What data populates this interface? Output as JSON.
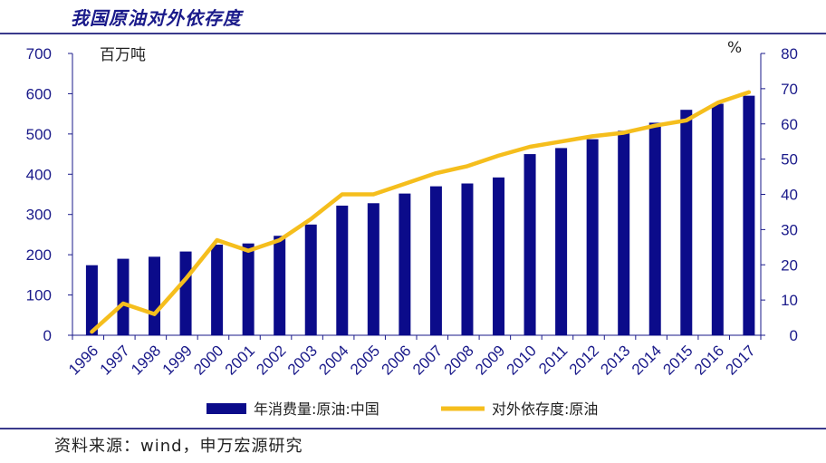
{
  "title": "我国原油对外依存度",
  "source": "资料来源：wind，申万宏源研究",
  "colors": {
    "bar": "#0b0b8a",
    "line": "#f5be1d",
    "axis": "#1a1a8a",
    "rule": "#3a3a8c"
  },
  "chart_data": {
    "type": "bar",
    "categories": [
      "1996",
      "1997",
      "1998",
      "1999",
      "2000",
      "2001",
      "2002",
      "2003",
      "2004",
      "2005",
      "2006",
      "2007",
      "2008",
      "2009",
      "2010",
      "2011",
      "2012",
      "2013",
      "2014",
      "2015",
      "2016",
      "2017"
    ],
    "left_unit": "百万吨",
    "right_unit": "%",
    "ylim_left": [
      0,
      700
    ],
    "ylim_right": [
      0,
      80
    ],
    "left_ticks": [
      0,
      100,
      200,
      300,
      400,
      500,
      600,
      700
    ],
    "right_ticks": [
      0,
      10,
      20,
      30,
      40,
      50,
      60,
      70,
      80
    ],
    "grid": false,
    "legend_position": "bottom",
    "series": [
      {
        "name": "年消费量:原油:中国",
        "type": "bar",
        "axis": "left",
        "values": [
          174,
          190,
          195,
          208,
          225,
          228,
          247,
          275,
          322,
          328,
          352,
          370,
          377,
          392,
          450,
          465,
          487,
          508,
          528,
          560,
          575,
          595
        ]
      },
      {
        "name": "对外依存度:原油",
        "type": "line",
        "axis": "right",
        "values": [
          1,
          9,
          6,
          16,
          27,
          24,
          27,
          33,
          40,
          40,
          43,
          46,
          48,
          51,
          53.5,
          55,
          56.5,
          57.5,
          59.5,
          61,
          66,
          69
        ]
      }
    ]
  }
}
